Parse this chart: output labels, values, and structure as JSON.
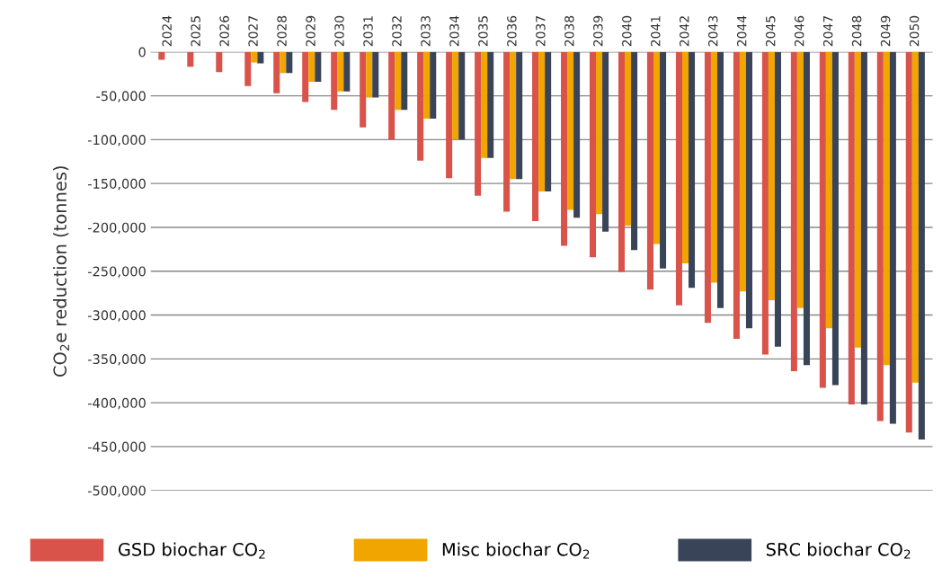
{
  "chart_data": {
    "type": "bar",
    "ylabel": "CO$_{2}$e reduction (tonnes)",
    "categories": [
      "2024",
      "2025",
      "2026",
      "2027",
      "2028",
      "2029",
      "2030",
      "2031",
      "2032",
      "2033",
      "2034",
      "2035",
      "2036",
      "2037",
      "2038",
      "2039",
      "2040",
      "2041",
      "2042",
      "2043",
      "2044",
      "2045",
      "2046",
      "2047",
      "2048",
      "2049",
      "2050"
    ],
    "series": [
      {
        "name": "GSD biochar CO$_{2}$",
        "color": "#d9534a",
        "values": [
          -9000,
          -17000,
          -23000,
          -39000,
          -47000,
          -57000,
          -66000,
          -86000,
          -100000,
          -124000,
          -144000,
          -164000,
          -182000,
          -193000,
          -221000,
          -234000,
          -251000,
          -271000,
          -289000,
          -309000,
          -327000,
          -345000,
          -364000,
          -383000,
          -402000,
          -421000,
          -434000
        ]
      },
      {
        "name": "Misc biochar CO$_{2}$",
        "color": "#f0a500",
        "values": [
          null,
          null,
          null,
          -12000,
          -24000,
          -34000,
          -45000,
          -52000,
          -66000,
          -76000,
          -100000,
          -121000,
          -145000,
          -159000,
          -180000,
          -185000,
          -198000,
          -219000,
          -241000,
          -263000,
          -273000,
          -283000,
          -292000,
          -315000,
          -337000,
          -357000,
          -377000
        ]
      },
      {
        "name": "SRC biochar CO$_{2}$",
        "color": "#3a4459",
        "values": [
          null,
          null,
          null,
          -13000,
          -24000,
          -34000,
          -45000,
          -52000,
          -66000,
          -76000,
          -100000,
          -121000,
          -145000,
          -159000,
          -189000,
          -205000,
          -226000,
          -247000,
          -269000,
          -292000,
          -315000,
          -336000,
          -357000,
          -380000,
          -402000,
          -424000,
          -442000
        ]
      }
    ],
    "ylim": [
      -500000,
      0
    ],
    "yticks": [
      {
        "value": 0,
        "label": "0"
      },
      {
        "value": -50000,
        "label": "-50,000"
      },
      {
        "value": -100000,
        "label": "-100,000"
      },
      {
        "value": -150000,
        "label": "-150,000"
      },
      {
        "value": -200000,
        "label": "-200,000"
      },
      {
        "value": -250000,
        "label": "-250,000"
      },
      {
        "value": -300000,
        "label": "-300,000"
      },
      {
        "value": -350000,
        "label": "-350,000"
      },
      {
        "value": -400000,
        "label": "-400,000"
      },
      {
        "value": -450000,
        "label": "-450,000"
      },
      {
        "value": -500000,
        "label": "-500,000"
      }
    ],
    "grid": "y",
    "legend": "bottom"
  }
}
